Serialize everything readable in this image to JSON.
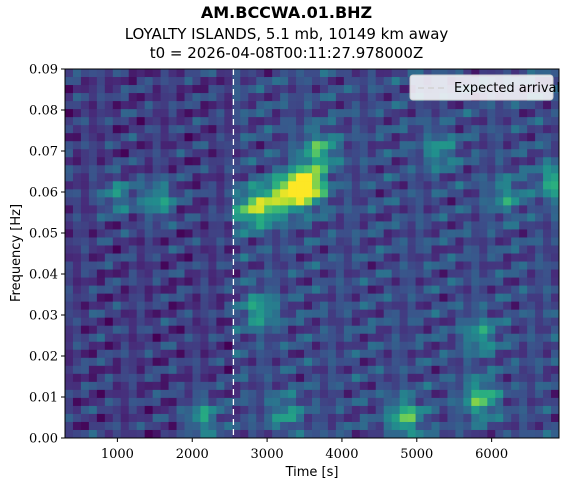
{
  "chart_data": {
    "type": "heatmap",
    "title": "AM.BCCWA.01.BHZ",
    "subtitle": "LOYALTY ISLANDS, 5.1 mb, 10149 km away",
    "subtitle2": "t0 = 2026-04-08T00:11:27.978000Z",
    "xlabel": "Time [s]",
    "ylabel": "Frequency [Hz]",
    "xlim": [
      300,
      6900
    ],
    "ylim": [
      0.0,
      0.09
    ],
    "xticks": [
      1000,
      2000,
      3000,
      4000,
      5000,
      6000
    ],
    "xtick_labels": [
      "1000",
      "2000",
      "3000",
      "4000",
      "5000",
      "6000"
    ],
    "yticks": [
      0.0,
      0.01,
      0.02,
      0.03,
      0.04,
      0.05,
      0.06,
      0.07,
      0.08,
      0.09
    ],
    "ytick_labels": [
      "0.00",
      "0.01",
      "0.02",
      "0.03",
      "0.04",
      "0.05",
      "0.06",
      "0.07",
      "0.08",
      "0.09"
    ],
    "colormap": "viridis",
    "expected_arrival": 2550,
    "legend": {
      "label": "Expected arrival",
      "position": "top-right"
    },
    "hotspots": [
      {
        "t": 3550,
        "f": 0.0615,
        "strength": 1.0
      },
      {
        "t": 3300,
        "f": 0.06,
        "strength": 0.75
      },
      {
        "t": 3000,
        "f": 0.057,
        "strength": 0.6
      },
      {
        "t": 2750,
        "f": 0.0555,
        "strength": 0.5
      },
      {
        "t": 3700,
        "f": 0.07,
        "strength": 0.55
      },
      {
        "t": 1550,
        "f": 0.058,
        "strength": 0.45
      },
      {
        "t": 1000,
        "f": 0.059,
        "strength": 0.35
      },
      {
        "t": 6850,
        "f": 0.0625,
        "strength": 0.5
      },
      {
        "t": 4850,
        "f": 0.005,
        "strength": 0.6
      },
      {
        "t": 5850,
        "f": 0.0095,
        "strength": 0.6
      },
      {
        "t": 5850,
        "f": 0.025,
        "strength": 0.4
      },
      {
        "t": 2150,
        "f": 0.005,
        "strength": 0.45
      },
      {
        "t": 2900,
        "f": 0.031,
        "strength": 0.45
      },
      {
        "t": 3250,
        "f": 0.006,
        "strength": 0.35
      },
      {
        "t": 5300,
        "f": 0.07,
        "strength": 0.35
      },
      {
        "t": 6200,
        "f": 0.059,
        "strength": 0.35
      }
    ]
  }
}
